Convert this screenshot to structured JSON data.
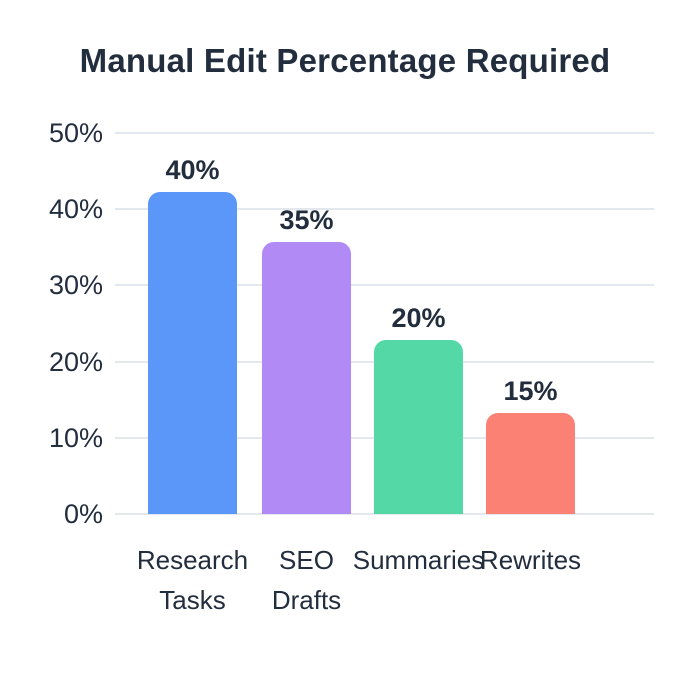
{
  "chart": {
    "title": "Manual Edit Percentage Required",
    "colors": {
      "text": "#222d3d",
      "grid": "#e3e8ee",
      "background": "#ffffff"
    },
    "y_axis": {
      "ticks": [
        "50%",
        "40%",
        "30%",
        "20%",
        "10%",
        "0%"
      ]
    },
    "bars": [
      {
        "category_line1": "Research",
        "category_line2": "Tasks",
        "value_label": "40%",
        "color": "#5b97f8",
        "height_pct": 84.5
      },
      {
        "category_line1": "SEO",
        "category_line2": "Drafts",
        "value_label": "35%",
        "color": "#b18af5",
        "height_pct": 71.4
      },
      {
        "category_line1": "Summaries",
        "category_line2": "",
        "value_label": "20%",
        "color": "#54d9a6",
        "height_pct": 45.7
      },
      {
        "category_line1": "Rewrites",
        "category_line2": "",
        "value_label": "15%",
        "color": "#fa8174",
        "height_pct": 26.5
      }
    ]
  },
  "chart_data": {
    "type": "bar",
    "categories": [
      "Research Tasks",
      "SEO Drafts",
      "Summaries",
      "Rewrites"
    ],
    "values": [
      40,
      35,
      20,
      15
    ],
    "data_labels": [
      "40%",
      "35%",
      "20%",
      "15%"
    ],
    "title": "Manual Edit Percentage Required",
    "xlabel": "",
    "ylabel": "",
    "ylim": [
      0,
      50
    ],
    "yticks": [
      0,
      10,
      20,
      30,
      40,
      50
    ],
    "ytick_format": "percent",
    "grid": "horizontal",
    "legend": "none",
    "bar_colors": [
      "#5b97f8",
      "#b18af5",
      "#54d9a6",
      "#fa8174"
    ]
  }
}
